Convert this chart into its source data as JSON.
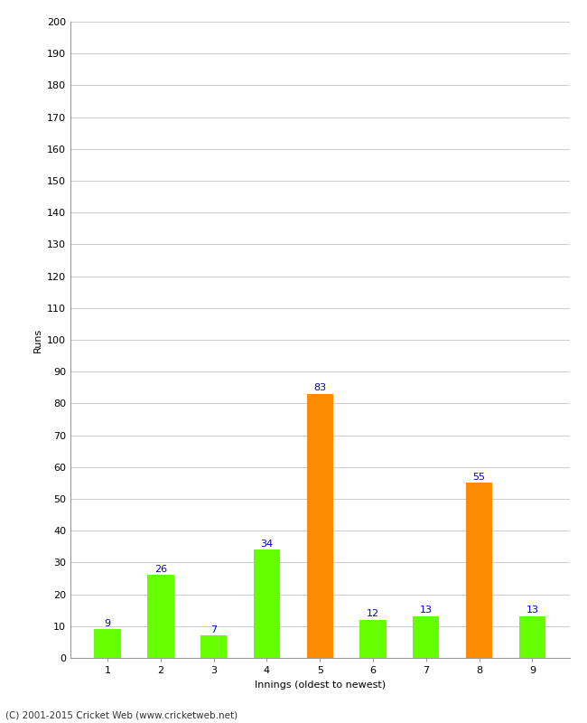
{
  "innings": [
    1,
    2,
    3,
    4,
    5,
    6,
    7,
    8,
    9
  ],
  "values": [
    9,
    26,
    7,
    34,
    83,
    12,
    13,
    55,
    13
  ],
  "colors": [
    "#66ff00",
    "#66ff00",
    "#66ff00",
    "#66ff00",
    "#ff8c00",
    "#66ff00",
    "#66ff00",
    "#ff8c00",
    "#66ff00"
  ],
  "xlabel": "Innings (oldest to newest)",
  "ylabel": "Runs",
  "ylim": [
    0,
    200
  ],
  "ytick_step": 10,
  "copyright": "(C) 2001-2015 Cricket Web (www.cricketweb.net)",
  "label_color": "#0000cc",
  "label_fontsize": 8,
  "axis_label_fontsize": 8,
  "tick_fontsize": 8,
  "background_color": "#ffffff",
  "grid_color": "#cccccc",
  "bar_width": 0.5
}
